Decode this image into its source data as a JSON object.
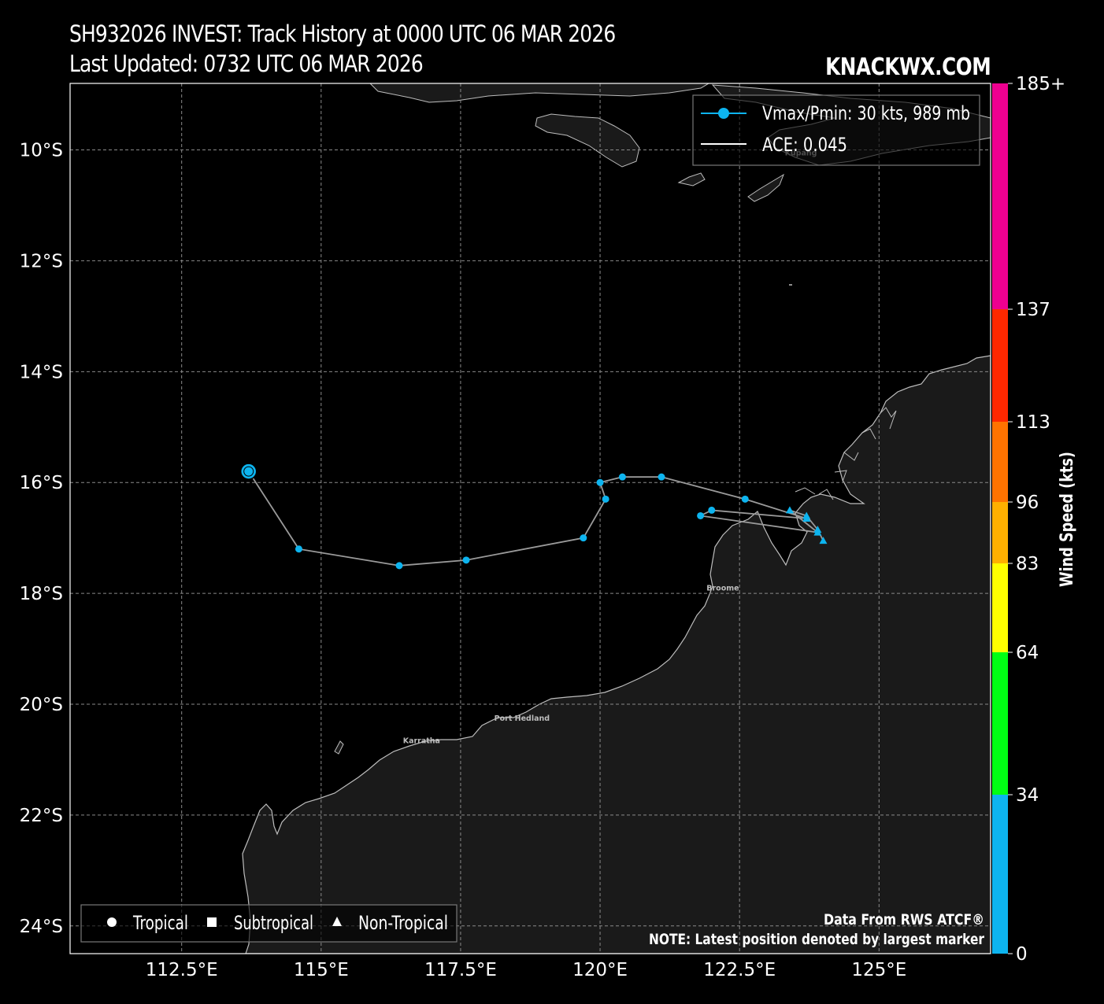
{
  "header": {
    "title_line1": "SH932026 INVEST: Track History at 0000 UTC 06 MAR 2026",
    "title_line2": "Last Updated: 0732 UTC 06 MAR 2026",
    "brand": "KNACKWX.COM"
  },
  "map": {
    "lon_range": [
      110.5,
      127.0
    ],
    "lat_range": [
      -24.5,
      -8.8
    ],
    "lat_ticks": [
      {
        "value": -10,
        "label": "10°S"
      },
      {
        "value": -12,
        "label": "12°S"
      },
      {
        "value": -14,
        "label": "14°S"
      },
      {
        "value": -16,
        "label": "16°S"
      },
      {
        "value": -18,
        "label": "18°S"
      },
      {
        "value": -20,
        "label": "20°S"
      },
      {
        "value": -22,
        "label": "22°S"
      },
      {
        "value": -24,
        "label": "24°S"
      }
    ],
    "lon_ticks": [
      {
        "value": 112.5,
        "label": "112.5°E"
      },
      {
        "value": 115,
        "label": "115°E"
      },
      {
        "value": 117.5,
        "label": "117.5°E"
      },
      {
        "value": 120,
        "label": "120°E"
      },
      {
        "value": 122.5,
        "label": "122.5°E"
      },
      {
        "value": 125,
        "label": "125°E"
      }
    ],
    "grid": true,
    "colors": {
      "ocean": "#000000",
      "land": "#1a1a1a",
      "coast": "#bdbdbd",
      "grid": "#8a8a8a",
      "track": "#9a9a9a",
      "marker": "#0db4ef"
    },
    "cities": [
      {
        "name": "Broome",
        "lon": 122.2,
        "lat": -17.95
      },
      {
        "name": "Port Hedland",
        "lon": 118.6,
        "lat": -20.3
      },
      {
        "name": "Karratha",
        "lon": 116.8,
        "lat": -20.7
      },
      {
        "name": "Kupang",
        "lon": 123.6,
        "lat": -10.1
      }
    ]
  },
  "track": [
    {
      "lon": 124.0,
      "lat": -17.05,
      "type": "non-tropical"
    },
    {
      "lon": 123.9,
      "lat": -16.85,
      "type": "non-tropical"
    },
    {
      "lon": 123.7,
      "lat": -16.6,
      "type": "non-tropical"
    },
    {
      "lon": 123.4,
      "lat": -16.5,
      "type": "non-tropical"
    },
    {
      "lon": 123.9,
      "lat": -16.9,
      "type": "non-tropical"
    },
    {
      "lon": 121.8,
      "lat": -16.6,
      "type": "tropical"
    },
    {
      "lon": 122.0,
      "lat": -16.5,
      "type": "tropical"
    },
    {
      "lon": 123.7,
      "lat": -16.65,
      "type": "non-tropical"
    },
    {
      "lon": 122.6,
      "lat": -16.3,
      "type": "tropical"
    },
    {
      "lon": 121.1,
      "lat": -15.9,
      "type": "tropical"
    },
    {
      "lon": 120.4,
      "lat": -15.9,
      "type": "tropical"
    },
    {
      "lon": 120.0,
      "lat": -16.0,
      "type": "tropical"
    },
    {
      "lon": 120.1,
      "lat": -16.3,
      "type": "tropical"
    },
    {
      "lon": 119.7,
      "lat": -17.0,
      "type": "tropical"
    },
    {
      "lon": 117.6,
      "lat": -17.4,
      "type": "tropical"
    },
    {
      "lon": 116.4,
      "lat": -17.5,
      "type": "tropical"
    },
    {
      "lon": 114.6,
      "lat": -17.2,
      "type": "tropical"
    },
    {
      "lon": 113.7,
      "lat": -15.8,
      "type": "tropical",
      "latest": true
    }
  ],
  "legend": {
    "vmax_label": "Vmax/Pmin: 30 kts, 989 mb",
    "ace_label": "ACE: 0.045",
    "tropical_label": "Tropical",
    "subtropical_label": "Subtropical",
    "nontropical_label": "Non-Tropical"
  },
  "colorbar": {
    "label": "Wind Speed (kts)",
    "bands": [
      {
        "from": 0,
        "to": 34,
        "color": "#0db4ef"
      },
      {
        "from": 34,
        "to": 64,
        "color": "#00ff14"
      },
      {
        "from": 64,
        "to": 83,
        "color": "#ffff00"
      },
      {
        "from": 83,
        "to": 96,
        "color": "#ffb000"
      },
      {
        "from": 96,
        "to": 113,
        "color": "#ff7300"
      },
      {
        "from": 113,
        "to": 137,
        "color": "#ff2800"
      },
      {
        "from": 137,
        "to": 185,
        "color": "#ee0090"
      }
    ],
    "ticks": [
      "0",
      "34",
      "64",
      "83",
      "96",
      "113",
      "137",
      "185+"
    ]
  },
  "notes": {
    "source": "Data From RWS ATCF®",
    "latest": "NOTE: Latest position denoted by largest marker"
  }
}
